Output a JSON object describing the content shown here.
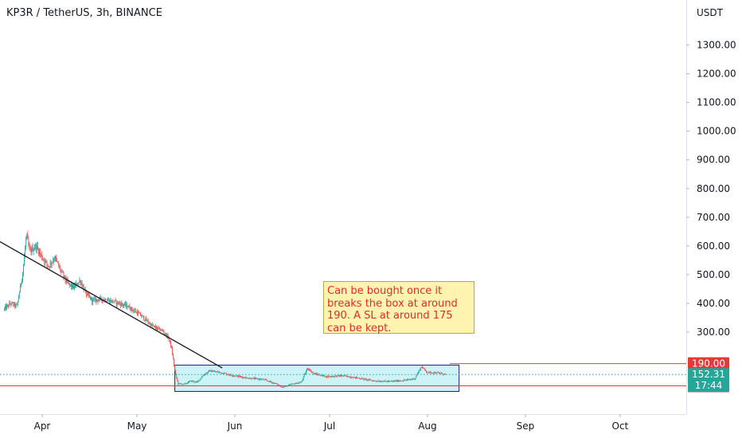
{
  "header": {
    "symbol_title": "KP3R / TetherUS, 3h, BINANCE"
  },
  "annotation": {
    "text": "Can be bought once it breaks the box at around 190. A SL at around 175 can be kept."
  },
  "colors": {
    "up": "#26a69a",
    "down": "#ef5350",
    "trendline": "#131722",
    "box_fill": "#b2ebf2",
    "box_border": "#1a237e",
    "level_line": "#e53935",
    "current_price": "#26a69a",
    "note_bg": "#fff3b0",
    "note_text": "#e22a2a"
  },
  "chart_data": {
    "type": "candlestick",
    "currency": "USDT",
    "y_ticks": [
      "1300.00",
      "1200.00",
      "1100.00",
      "1000.00",
      "900.00",
      "800.00",
      "700.00",
      "600.00",
      "500.00",
      "400.00",
      "300.00"
    ],
    "x_ticks": [
      "Apr",
      "May",
      "Jun",
      "Jul",
      "Aug",
      "Sep",
      "Oct"
    ],
    "price_series": [
      [
        "2021-03-20",
        380
      ],
      [
        "2021-03-22",
        400
      ],
      [
        "2021-03-24",
        390
      ],
      [
        "2021-03-26",
        520
      ],
      [
        "2021-03-27",
        640
      ],
      [
        "2021-03-28",
        580
      ],
      [
        "2021-03-30",
        600
      ],
      [
        "2021-04-01",
        560
      ],
      [
        "2021-04-03",
        530
      ],
      [
        "2021-04-05",
        560
      ],
      [
        "2021-04-07",
        510
      ],
      [
        "2021-04-09",
        470
      ],
      [
        "2021-04-11",
        455
      ],
      [
        "2021-04-13",
        480
      ],
      [
        "2021-04-15",
        430
      ],
      [
        "2021-04-17",
        410
      ],
      [
        "2021-04-20",
        415
      ],
      [
        "2021-04-24",
        405
      ],
      [
        "2021-04-28",
        390
      ],
      [
        "2021-05-02",
        360
      ],
      [
        "2021-05-06",
        320
      ],
      [
        "2021-05-09",
        305
      ],
      [
        "2021-05-11",
        280
      ],
      [
        "2021-05-12",
        240
      ],
      [
        "2021-05-13",
        165
      ],
      [
        "2021-05-14",
        120
      ],
      [
        "2021-05-16",
        118
      ],
      [
        "2021-05-18",
        130
      ],
      [
        "2021-05-20",
        125
      ],
      [
        "2021-05-22",
        150
      ],
      [
        "2021-05-24",
        165
      ],
      [
        "2021-05-27",
        160
      ],
      [
        "2021-05-31",
        150
      ],
      [
        "2021-06-05",
        140
      ],
      [
        "2021-06-10",
        135
      ],
      [
        "2021-06-14",
        120
      ],
      [
        "2021-06-16",
        108
      ],
      [
        "2021-06-19",
        118
      ],
      [
        "2021-06-22",
        125
      ],
      [
        "2021-06-24",
        175
      ],
      [
        "2021-06-26",
        155
      ],
      [
        "2021-06-30",
        145
      ],
      [
        "2021-07-05",
        148
      ],
      [
        "2021-07-10",
        140
      ],
      [
        "2021-07-15",
        130
      ],
      [
        "2021-07-20",
        128
      ],
      [
        "2021-07-25",
        132
      ],
      [
        "2021-07-28",
        138
      ],
      [
        "2021-07-30",
        180
      ],
      [
        "2021-08-01",
        160
      ],
      [
        "2021-08-04",
        158
      ],
      [
        "2021-08-07",
        152.31
      ]
    ],
    "trendline": {
      "from": [
        "2021-03-05",
        700
      ],
      "to": [
        "2021-05-28",
        175
      ]
    },
    "box": {
      "x": [
        "2021-05-13",
        "2021-08-11"
      ],
      "y": [
        112.76,
        185
      ]
    },
    "levels": [
      {
        "price": 190,
        "label": "190.00",
        "from": "2021-08-08"
      },
      {
        "price": 112.76,
        "label": "112.76",
        "from": "2021-03-01"
      }
    ],
    "current_price": {
      "price": 152.31,
      "label": "152.31",
      "countdown": "17:44"
    }
  }
}
